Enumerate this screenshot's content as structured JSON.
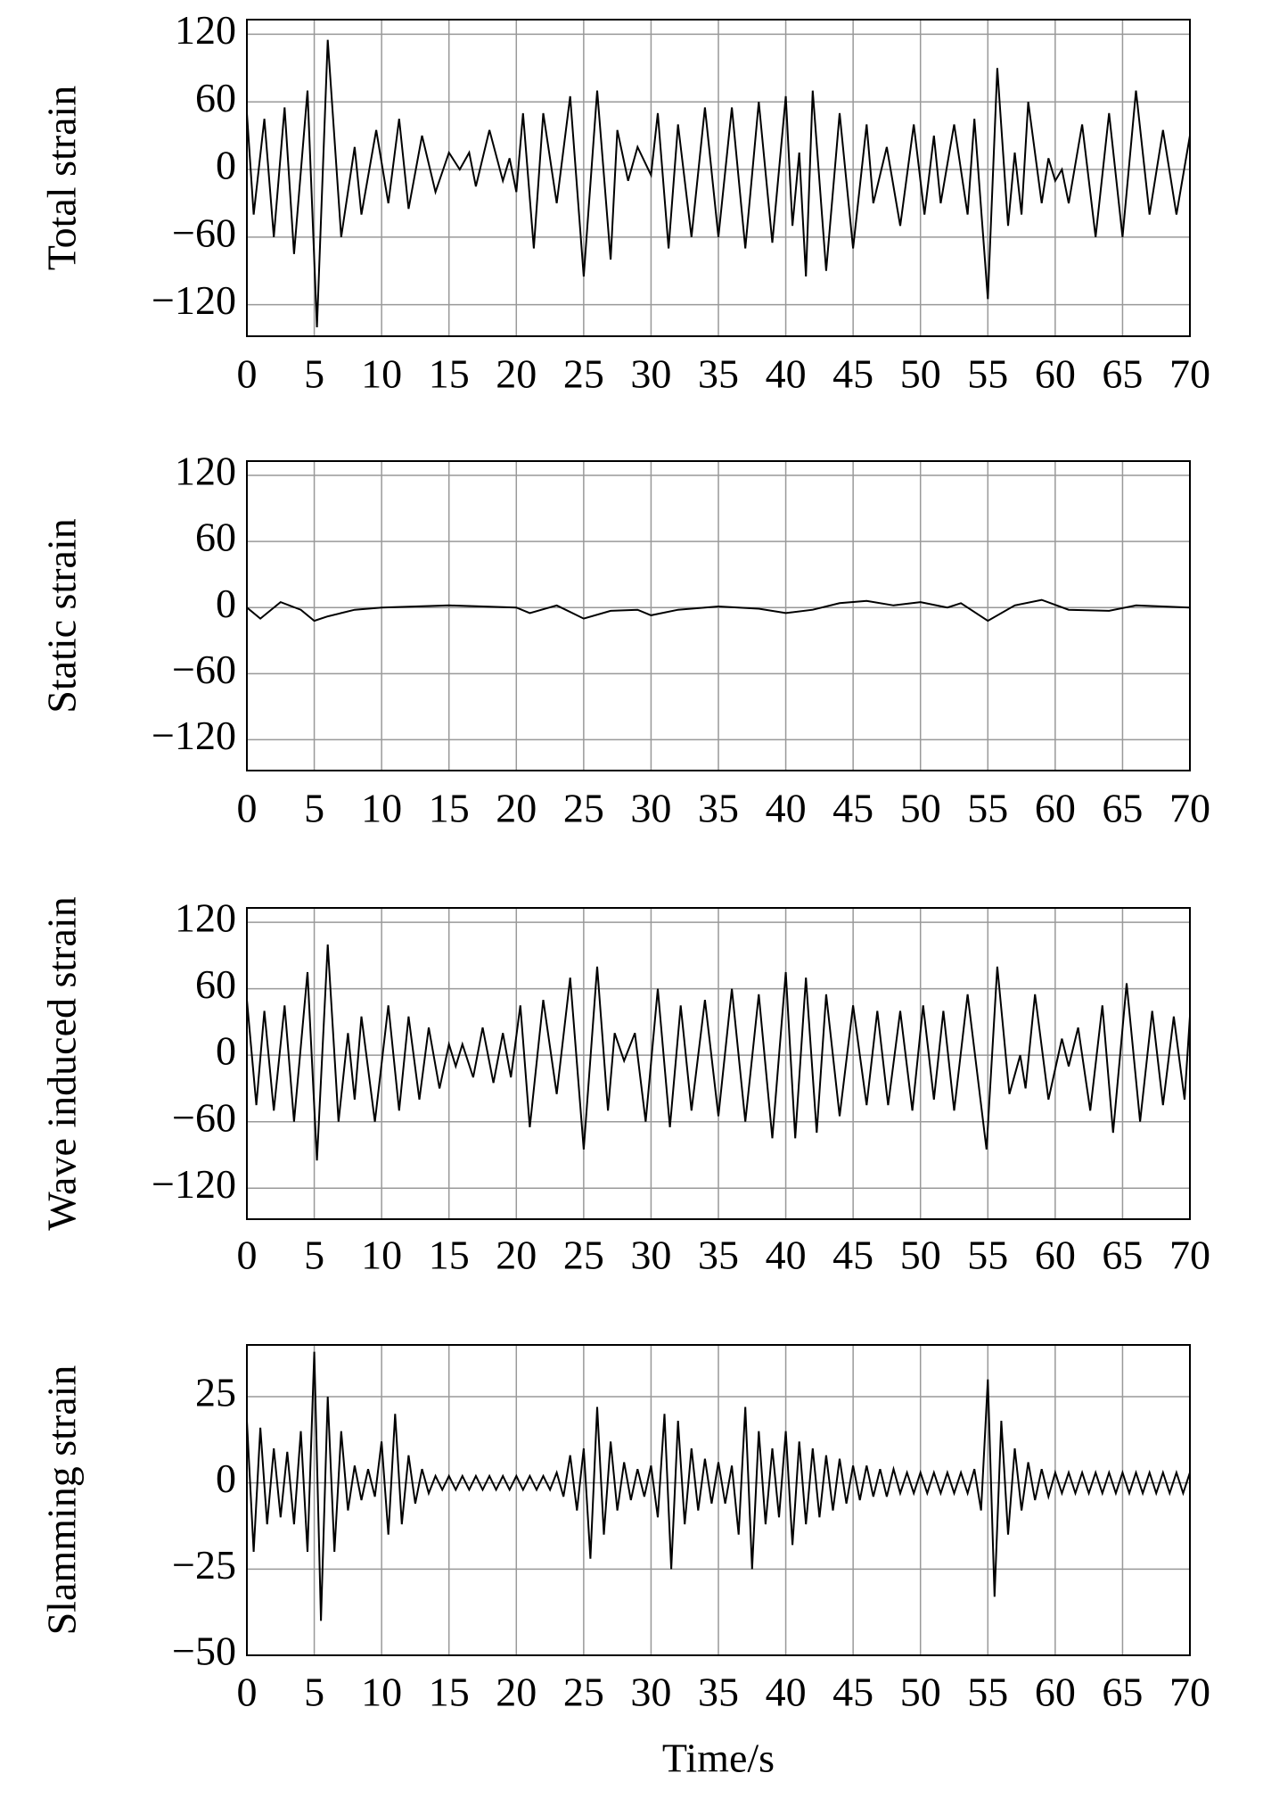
{
  "chart_data": [
    {
      "type": "line",
      "ylabel": "Total strain",
      "color": "#000000",
      "grid": true,
      "xlim": [
        0,
        70
      ],
      "xticks": [
        0,
        5,
        10,
        15,
        20,
        25,
        30,
        35,
        40,
        45,
        50,
        55,
        60,
        65,
        70
      ],
      "ylim": [
        -148,
        133
      ],
      "yticks": [
        {
          "value": -120,
          "label": "−120"
        },
        {
          "value": -60,
          "label": "−60"
        },
        0,
        60,
        120
      ],
      "x": [
        0,
        0.5,
        1.3,
        2,
        2.8,
        3.5,
        4.5,
        5.2,
        6,
        7,
        8,
        8.5,
        9.6,
        10.5,
        11.3,
        12,
        13,
        14,
        15,
        15.8,
        16.5,
        17,
        18,
        19,
        19.5,
        20,
        20.5,
        21.3,
        22,
        23,
        24,
        25,
        26,
        27,
        27.5,
        28.3,
        29,
        30,
        30.5,
        31.3,
        32,
        33,
        34,
        35,
        36,
        37,
        38,
        39,
        40,
        40.5,
        41,
        41.5,
        42,
        43,
        44,
        45,
        46,
        46.5,
        47.5,
        48.5,
        49.5,
        50.3,
        51,
        51.5,
        52.5,
        53.5,
        54,
        55,
        55.7,
        56.5,
        57,
        57.5,
        58,
        59,
        59.5,
        60,
        60.5,
        61,
        62,
        63,
        64,
        65,
        66,
        67,
        68,
        69,
        70
      ],
      "values": [
        50,
        -40,
        45,
        -60,
        55,
        -75,
        70,
        -140,
        115,
        -60,
        20,
        -40,
        35,
        -30,
        45,
        -35,
        30,
        -20,
        15,
        0,
        15,
        -15,
        35,
        -10,
        10,
        -20,
        50,
        -70,
        50,
        -30,
        65,
        -95,
        70,
        -80,
        35,
        -10,
        20,
        -5,
        50,
        -70,
        40,
        -60,
        55,
        -60,
        55,
        -70,
        60,
        -65,
        65,
        -50,
        15,
        -95,
        70,
        -90,
        50,
        -70,
        40,
        -30,
        20,
        -50,
        40,
        -40,
        30,
        -30,
        40,
        -40,
        45,
        -115,
        90,
        -50,
        15,
        -40,
        60,
        -30,
        10,
        -10,
        0,
        -30,
        40,
        -60,
        50,
        -60,
        70,
        -40,
        35,
        -40,
        30
      ]
    },
    {
      "type": "line",
      "ylabel": "Static strain",
      "color": "#000000",
      "grid": true,
      "xlim": [
        0,
        70
      ],
      "xticks": [
        0,
        5,
        10,
        15,
        20,
        25,
        30,
        35,
        40,
        45,
        50,
        55,
        60,
        65,
        70
      ],
      "ylim": [
        -148,
        133
      ],
      "yticks": [
        {
          "value": -120,
          "label": "−120"
        },
        {
          "value": -60,
          "label": "−60"
        },
        0,
        60,
        120
      ],
      "x": [
        0,
        1,
        2.5,
        4,
        5,
        6,
        8,
        10,
        15,
        20,
        21,
        23,
        25,
        27,
        29,
        30,
        32,
        35,
        38,
        40,
        42,
        44,
        46,
        48,
        50,
        52,
        53,
        55,
        57,
        59,
        61,
        64,
        66,
        70
      ],
      "values": [
        0,
        -10,
        5,
        -2,
        -12,
        -8,
        -2,
        0,
        2,
        0,
        -5,
        2,
        -10,
        -3,
        -2,
        -7,
        -2,
        1,
        -1,
        -5,
        -2,
        4,
        6,
        2,
        5,
        0,
        4,
        -12,
        2,
        7,
        -2,
        -3,
        2,
        0
      ]
    },
    {
      "type": "line",
      "ylabel": "Wave induced strain",
      "color": "#000000",
      "grid": true,
      "xlim": [
        0,
        70
      ],
      "xticks": [
        0,
        5,
        10,
        15,
        20,
        25,
        30,
        35,
        40,
        45,
        50,
        55,
        60,
        65,
        70
      ],
      "ylim": [
        -148,
        133
      ],
      "yticks": [
        {
          "value": -120,
          "label": "−120"
        },
        {
          "value": -60,
          "label": "−60"
        },
        0,
        60,
        120
      ],
      "x": [
        0,
        0.7,
        1.3,
        2,
        2.8,
        3.5,
        4.5,
        5.2,
        6,
        6.8,
        7.5,
        8,
        8.5,
        9.5,
        10.5,
        11.3,
        12,
        12.8,
        13.5,
        14.3,
        15,
        15.5,
        16,
        16.8,
        17.5,
        18.3,
        19,
        19.6,
        20.3,
        21,
        22,
        23,
        24,
        25,
        26,
        26.8,
        27.3,
        28,
        28.8,
        29.6,
        30.5,
        31.4,
        32.2,
        33,
        34,
        35,
        36,
        37,
        38,
        39,
        40,
        40.7,
        41.5,
        42.3,
        43,
        44,
        45,
        46,
        46.8,
        47.6,
        48.5,
        49.4,
        50.2,
        51,
        51.7,
        52.5,
        53.5,
        54.9,
        55.7,
        56.6,
        57.4,
        57.8,
        58.5,
        59.5,
        60.5,
        61,
        61.7,
        62.6,
        63.5,
        64.3,
        65.3,
        66.3,
        67.2,
        68,
        68.8,
        69.6,
        70
      ],
      "values": [
        50,
        -45,
        40,
        -50,
        45,
        -60,
        75,
        -95,
        100,
        -60,
        20,
        -40,
        35,
        -60,
        45,
        -50,
        35,
        -40,
        25,
        -30,
        10,
        -10,
        10,
        -20,
        25,
        -25,
        20,
        -20,
        45,
        -65,
        50,
        -35,
        70,
        -85,
        80,
        -50,
        20,
        -5,
        20,
        -60,
        60,
        -65,
        45,
        -50,
        50,
        -55,
        60,
        -60,
        55,
        -75,
        75,
        -75,
        70,
        -70,
        55,
        -55,
        45,
        -45,
        40,
        -45,
        40,
        -50,
        45,
        -40,
        40,
        -50,
        55,
        -85,
        80,
        -35,
        0,
        -30,
        55,
        -40,
        15,
        -10,
        25,
        -50,
        45,
        -70,
        65,
        -60,
        40,
        -45,
        35,
        -40,
        35
      ]
    },
    {
      "type": "line",
      "ylabel": "Slamming strain",
      "xlabel": "Time/s",
      "color": "#000000",
      "grid": true,
      "xlim": [
        0,
        70
      ],
      "xticks": [
        0,
        5,
        10,
        15,
        20,
        25,
        30,
        35,
        40,
        45,
        50,
        55,
        60,
        65,
        70
      ],
      "ylim": [
        -50,
        40
      ],
      "yticks": [
        {
          "value": -50,
          "label": "−50"
        },
        {
          "value": -25,
          "label": "−25"
        },
        0,
        25
      ],
      "x": [
        0,
        0.5,
        1,
        1.5,
        2,
        2.5,
        3,
        3.5,
        4,
        4.5,
        5,
        5.5,
        6,
        6.5,
        7,
        7.5,
        8,
        8.5,
        9,
        9.5,
        10,
        10.5,
        11,
        11.5,
        12,
        12.5,
        13,
        13.5,
        14,
        14.5,
        15,
        15.5,
        16,
        16.5,
        17,
        17.5,
        18,
        18.5,
        19,
        19.5,
        20,
        20.5,
        21,
        21.5,
        22,
        22.5,
        23,
        23.5,
        24,
        24.5,
        25,
        25.5,
        26,
        26.5,
        27,
        27.5,
        28,
        28.5,
        29,
        29.5,
        30,
        30.5,
        31,
        31.5,
        32,
        32.5,
        33,
        33.5,
        34,
        34.5,
        35,
        35.5,
        36,
        36.5,
        37,
        37.5,
        38,
        38.5,
        39,
        39.5,
        40,
        40.5,
        41,
        41.5,
        42,
        42.5,
        43,
        43.5,
        44,
        44.5,
        45,
        45.5,
        46,
        46.5,
        47,
        47.5,
        48,
        48.5,
        49,
        49.5,
        50,
        50.5,
        51,
        51.5,
        52,
        52.5,
        53,
        53.5,
        54,
        54.5,
        55,
        55.5,
        56,
        56.5,
        57,
        57.5,
        58,
        58.5,
        59,
        59.5,
        60,
        60.5,
        61,
        61.5,
        62,
        62.5,
        63,
        63.5,
        64,
        64.5,
        65,
        65.5,
        66,
        66.5,
        67,
        67.5,
        68,
        68.5,
        69,
        69.5,
        70
      ],
      "values": [
        18,
        -20,
        16,
        -12,
        10,
        -10,
        9,
        -12,
        15,
        -20,
        38,
        -40,
        25,
        -20,
        15,
        -8,
        5,
        -5,
        4,
        -4,
        12,
        -15,
        20,
        -12,
        8,
        -6,
        4,
        -3,
        2,
        -2,
        2,
        -2,
        2,
        -2,
        2,
        -2,
        2,
        -2,
        2,
        -2,
        2,
        -2,
        2,
        -2,
        2,
        -2,
        3,
        -4,
        8,
        -8,
        10,
        -22,
        22,
        -15,
        12,
        -8,
        6,
        -5,
        4,
        -4,
        5,
        -10,
        20,
        -25,
        18,
        -12,
        10,
        -8,
        7,
        -6,
        6,
        -6,
        5,
        -15,
        22,
        -25,
        15,
        -12,
        10,
        -10,
        15,
        -18,
        12,
        -12,
        10,
        -10,
        8,
        -8,
        7,
        -6,
        5,
        -5,
        5,
        -4,
        4,
        -4,
        4,
        -3,
        3,
        -3,
        3,
        -3,
        3,
        -3,
        3,
        -3,
        3,
        -3,
        4,
        -8,
        30,
        -33,
        18,
        -15,
        10,
        -8,
        6,
        -5,
        4,
        -4,
        3,
        -3,
        3,
        -3,
        3,
        -3,
        3,
        -3,
        3,
        -3,
        3,
        -3,
        3,
        -3,
        3,
        -3,
        3,
        -3,
        3,
        -3,
        3
      ]
    }
  ]
}
